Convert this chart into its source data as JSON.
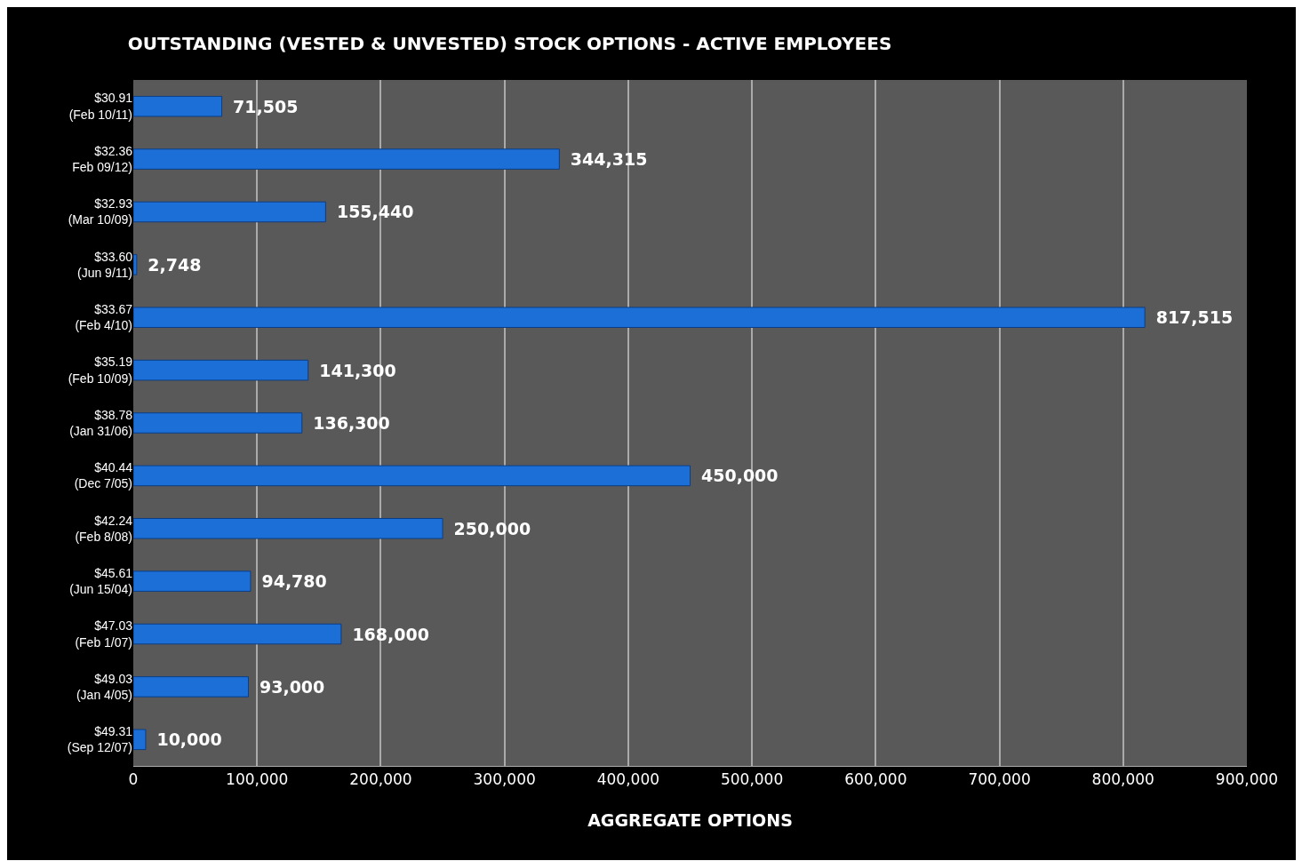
{
  "chart_data": {
    "type": "bar",
    "orientation": "horizontal",
    "title": "OUTSTANDING (VESTED & UNVESTED) STOCK OPTIONS - ACTIVE EMPLOYEES",
    "xlabel": "AGGREGATE OPTIONS",
    "categories": [
      "$30.91\n(Feb 10/11)",
      "$32.36\nFeb 09/12)",
      "$32.93\n(Mar 10/09)",
      "$33.60\n(Jun 9/11)",
      "$33.67\n(Feb 4/10)",
      "$35.19\n(Feb 10/09)",
      "$38.78\n(Jan 31/06)",
      "$40.44\n(Dec 7/05)",
      "$42.24\n(Feb 8/08)",
      "$45.61\n(Jun 15/04)",
      "$47.03\n(Feb 1/07)",
      "$49.03\n(Jan 4/05)",
      "$49.31\n(Sep 12/07)"
    ],
    "values": [
      71505,
      344315,
      155440,
      2748,
      817515,
      141300,
      136300,
      450000,
      250000,
      94780,
      168000,
      93000,
      10000
    ],
    "value_labels": [
      "71,505",
      "344,315",
      "155,440",
      "2,748",
      "817,515",
      "141,300",
      "136,300",
      "450,000",
      "250,000",
      "94,780",
      "168,000",
      "93,000",
      "10,000"
    ],
    "color": "#1c6fd6",
    "xlim": [
      0,
      900000
    ],
    "xticks": [
      0,
      {
        "value": 100000,
        "label": "100,000"
      },
      {
        "value": 200000,
        "label": "200,000"
      },
      {
        "value": 300000,
        "label": "300,000"
      },
      {
        "value": 400000,
        "label": "400,000"
      },
      {
        "value": 500000,
        "label": "500,000"
      },
      {
        "value": 600000,
        "label": "600,000"
      },
      {
        "value": 700000,
        "label": "700,000"
      },
      {
        "value": 800000,
        "label": "800,000"
      },
      {
        "value": 900000,
        "label": "900,000"
      }
    ],
    "grid": "x",
    "legend": false
  }
}
